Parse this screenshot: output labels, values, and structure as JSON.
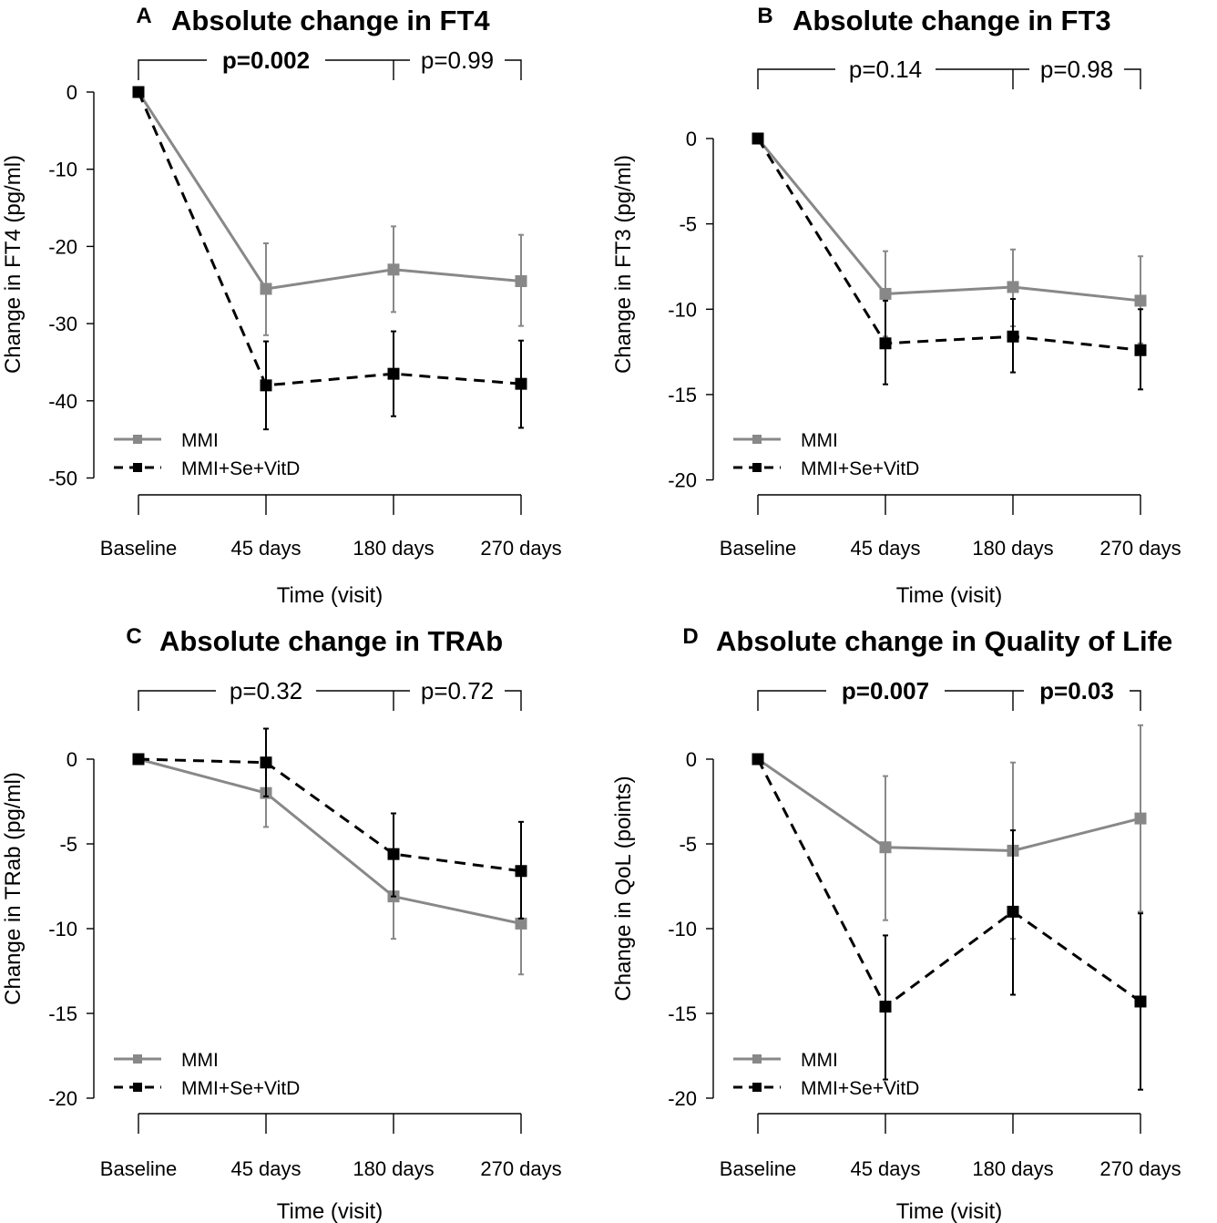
{
  "figure": {
    "series_names": [
      "MMI",
      "MMI+Se+VitD"
    ],
    "series_colors": [
      "#888888",
      "#000000"
    ]
  },
  "chart_data": [
    {
      "type": "line",
      "letter": "A",
      "title": "Absolute change in FT4",
      "xlabel": "Time (visit)",
      "ylabel": "Change in FT4 (pg/ml)",
      "categories": [
        "Baseline",
        "45 days",
        "180 days",
        "270 days"
      ],
      "ylim": [
        -50,
        0
      ],
      "yticks": [
        0,
        -10,
        -20,
        -30,
        -40,
        -50
      ],
      "series": [
        {
          "name": "MMI",
          "values": [
            0,
            -25.5,
            -23.0,
            -24.5
          ],
          "err_low": [
            0,
            -31.5,
            -28.5,
            -30.3
          ],
          "err_high": [
            0,
            -19.6,
            -17.4,
            -18.5
          ]
        },
        {
          "name": "MMI+Se+VitD",
          "values": [
            0,
            -38.0,
            -36.5,
            -37.8
          ],
          "err_low": [
            0,
            -43.7,
            -42.0,
            -43.5
          ],
          "err_high": [
            0,
            -32.3,
            -31.0,
            -32.2
          ]
        }
      ],
      "pvalues": [
        {
          "label": "p=0.002",
          "bold": true
        },
        {
          "label": "p=0.99",
          "bold": false
        }
      ]
    },
    {
      "type": "line",
      "letter": "B",
      "title": "Absolute change in FT3",
      "xlabel": "Time (visit)",
      "ylabel": "Change in FT3 (pg/ml)",
      "categories": [
        "Baseline",
        "45 days",
        "180 days",
        "270 days"
      ],
      "ylim": [
        -20,
        0
      ],
      "yticks": [
        0,
        -5,
        -10,
        -15,
        -20
      ],
      "series": [
        {
          "name": "MMI",
          "values": [
            0,
            -9.1,
            -8.7,
            -9.5
          ],
          "err_low": [
            0,
            -11.6,
            -11.0,
            -12.0
          ],
          "err_high": [
            0,
            -6.6,
            -6.5,
            -6.9
          ]
        },
        {
          "name": "MMI+Se+VitD",
          "values": [
            0,
            -12.0,
            -11.6,
            -12.4
          ],
          "err_low": [
            0,
            -14.4,
            -13.7,
            -14.7
          ],
          "err_high": [
            0,
            -9.5,
            -9.4,
            -10.0
          ]
        }
      ],
      "pvalues": [
        {
          "label": "p=0.14",
          "bold": false
        },
        {
          "label": "p=0.98",
          "bold": false
        }
      ]
    },
    {
      "type": "line",
      "letter": "C",
      "title": "Absolute change in TRAb",
      "xlabel": "Time (visit)",
      "ylabel": "Change in TRab (pg/ml)",
      "categories": [
        "Baseline",
        "45 days",
        "180 days",
        "270 days"
      ],
      "ylim": [
        -20,
        0
      ],
      "yticks": [
        0,
        -5,
        -10,
        -15,
        -20
      ],
      "series": [
        {
          "name": "MMI",
          "values": [
            0,
            -2.0,
            -8.1,
            -9.7
          ],
          "err_low": [
            0,
            -4.0,
            -10.6,
            -12.7
          ],
          "err_high": [
            0,
            0.0,
            -5.6,
            -6.7
          ]
        },
        {
          "name": "MMI+Se+VitD",
          "values": [
            0,
            -0.2,
            -5.6,
            -6.6
          ],
          "err_low": [
            0,
            -2.2,
            -8.1,
            -9.4
          ],
          "err_high": [
            0,
            1.8,
            -3.2,
            -3.7
          ]
        }
      ],
      "pvalues": [
        {
          "label": "p=0.32",
          "bold": false
        },
        {
          "label": "p=0.72",
          "bold": false
        }
      ]
    },
    {
      "type": "line",
      "letter": "D",
      "title": "Absolute change in Quality of Life",
      "xlabel": "Time (visit)",
      "ylabel": "Change in QoL (points)",
      "categories": [
        "Baseline",
        "45 days",
        "180 days",
        "270 days"
      ],
      "ylim": [
        -20,
        0
      ],
      "yticks": [
        0,
        -5,
        -10,
        -15,
        -20
      ],
      "series": [
        {
          "name": "MMI",
          "values": [
            0,
            -5.2,
            -5.4,
            -3.5
          ],
          "err_low": [
            0,
            -9.5,
            -10.6,
            -9.0
          ],
          "err_high": [
            0,
            -1.0,
            -0.2,
            2.0
          ]
        },
        {
          "name": "MMI+Se+VitD",
          "values": [
            0,
            -14.6,
            -9.0,
            -14.3
          ],
          "err_low": [
            0,
            -18.9,
            -13.9,
            -19.5
          ],
          "err_high": [
            0,
            -10.4,
            -4.2,
            -9.1
          ]
        }
      ],
      "pvalues": [
        {
          "label": "p=0.007",
          "bold": true
        },
        {
          "label": "p=0.03",
          "bold": true
        }
      ]
    }
  ]
}
